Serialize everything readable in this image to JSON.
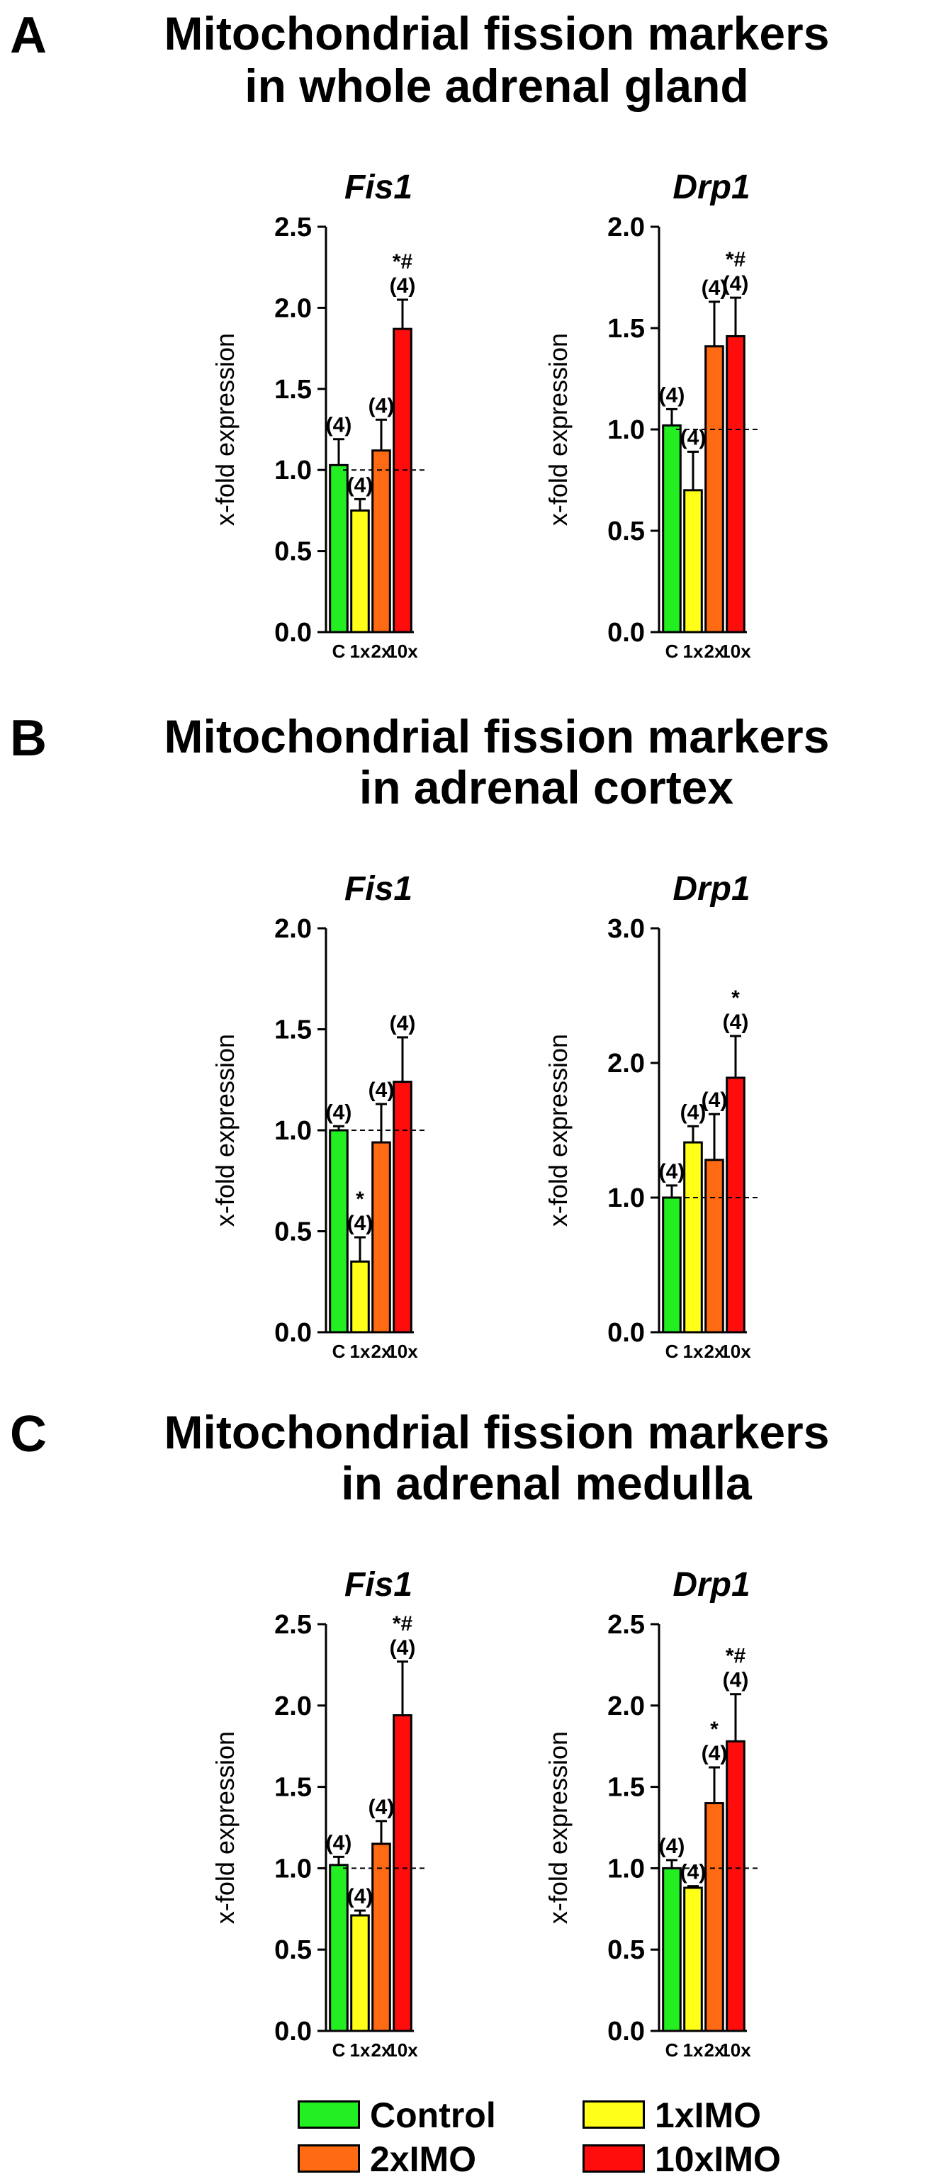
{
  "colors": {
    "C": "#22ee22",
    "1x": "#ffff1a",
    "2x": "#ff6a13",
    "10x": "#ff0d0d"
  },
  "legend": [
    {
      "key": "C",
      "label": "Control"
    },
    {
      "key": "1x",
      "label": "1xIMO"
    },
    {
      "key": "2x",
      "label": "2xIMO"
    },
    {
      "key": "10x",
      "label": "10xIMO"
    }
  ],
  "panels": [
    {
      "letter": "A",
      "title_lines": [
        "Mitochondrial fission markers",
        "in whole adrenal gland"
      ]
    },
    {
      "letter": "B",
      "title_lines": [
        "Mitochondrial fission markers",
        "in adrenal cortex"
      ]
    },
    {
      "letter": "C",
      "title_lines": [
        "Mitochondrial fission markers",
        "in adrenal medulla"
      ]
    }
  ],
  "chart_data": [
    {
      "type": "bar",
      "panel": "A",
      "title": "Fis1",
      "ylabel": "x-fold expression",
      "categories": [
        "C",
        "1x",
        "2x",
        "10x"
      ],
      "ylim": [
        0,
        2.5
      ],
      "yticks": [
        "0.0",
        "0.5",
        "1.0",
        "1.5",
        "2.0",
        "2.5"
      ],
      "reference_line": 1.0,
      "values": [
        1.03,
        0.75,
        1.12,
        1.87
      ],
      "errors": [
        0.16,
        0.07,
        0.19,
        0.18
      ],
      "n_labels": [
        "(4)",
        "(4)",
        "(4)",
        "(4)"
      ],
      "sig_labels": [
        "",
        "",
        "",
        "*#"
      ]
    },
    {
      "type": "bar",
      "panel": "A",
      "title": "Drp1",
      "ylabel": "x-fold expression",
      "categories": [
        "C",
        "1x",
        "2x",
        "10x"
      ],
      "ylim": [
        0,
        2.0
      ],
      "yticks": [
        "0.0",
        "0.5",
        "1.0",
        "1.5",
        "2.0"
      ],
      "reference_line": 1.0,
      "values": [
        1.02,
        0.7,
        1.41,
        1.46
      ],
      "errors": [
        0.08,
        0.19,
        0.22,
        0.19
      ],
      "n_labels": [
        "(4)",
        "(4)",
        "(4)",
        "(4)"
      ],
      "sig_labels": [
        "",
        "",
        "",
        "*#"
      ]
    },
    {
      "type": "bar",
      "panel": "B",
      "title": "Fis1",
      "ylabel": "x-fold expression",
      "categories": [
        "C",
        "1x",
        "2x",
        "10x"
      ],
      "ylim": [
        0,
        2.0
      ],
      "yticks": [
        "0.0",
        "0.5",
        "1.0",
        "1.5",
        "2.0"
      ],
      "reference_line": 1.0,
      "values": [
        1.0,
        0.35,
        0.94,
        1.24
      ],
      "errors": [
        0.02,
        0.12,
        0.19,
        0.22
      ],
      "n_labels": [
        "(4)",
        "(4)",
        "(4)",
        "(4)"
      ],
      "sig_labels": [
        "",
        "*",
        "",
        ""
      ]
    },
    {
      "type": "bar",
      "panel": "B",
      "title": "Drp1",
      "ylabel": "x-fold expression",
      "categories": [
        "C",
        "1x",
        "2x",
        "10x"
      ],
      "ylim": [
        0,
        3.0
      ],
      "yticks": [
        "0.0",
        "1.0",
        "2.0",
        "3.0"
      ],
      "reference_line": 1.0,
      "values": [
        1.0,
        1.41,
        1.28,
        1.89
      ],
      "errors": [
        0.09,
        0.12,
        0.34,
        0.31
      ],
      "n_labels": [
        "(4)",
        "(4)",
        "(4)",
        "(4)"
      ],
      "sig_labels": [
        "",
        "",
        "",
        "*"
      ]
    },
    {
      "type": "bar",
      "panel": "C",
      "title": "Fis1",
      "ylabel": "x-fold expression",
      "categories": [
        "C",
        "1x",
        "2x",
        "10x"
      ],
      "ylim": [
        0,
        2.5
      ],
      "yticks": [
        "0.0",
        "0.5",
        "1.0",
        "1.5",
        "2.0",
        "2.5"
      ],
      "reference_line": 1.0,
      "values": [
        1.02,
        0.71,
        1.15,
        1.94
      ],
      "errors": [
        0.05,
        0.03,
        0.14,
        0.33
      ],
      "n_labels": [
        "(4)",
        "(4)",
        "(4)",
        "(4)"
      ],
      "sig_labels": [
        "",
        "",
        "",
        "*#"
      ]
    },
    {
      "type": "bar",
      "panel": "C",
      "title": "Drp1",
      "ylabel": "x-fold expression",
      "categories": [
        "C",
        "1x",
        "2x",
        "10x"
      ],
      "ylim": [
        0,
        2.5
      ],
      "yticks": [
        "0.0",
        "0.5",
        "1.0",
        "1.5",
        "2.0",
        "2.5"
      ],
      "reference_line": 1.0,
      "values": [
        1.0,
        0.88,
        1.4,
        1.78
      ],
      "errors": [
        0.05,
        0.01,
        0.22,
        0.29
      ],
      "n_labels": [
        "(4)",
        "(4)",
        "(4)",
        "(4)"
      ],
      "sig_labels": [
        "",
        "",
        "*",
        "*#"
      ]
    }
  ]
}
